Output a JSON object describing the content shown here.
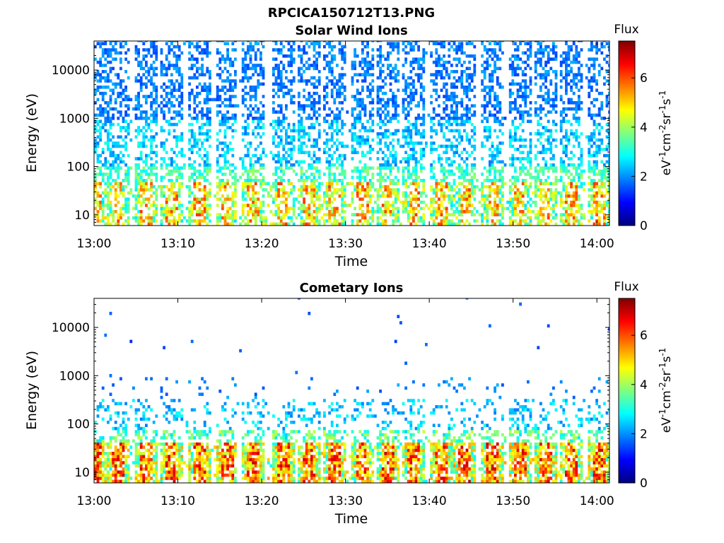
{
  "figure_title": "RPCICA150712T13.PNG",
  "colors": {
    "jet": [
      "#00007f",
      "#0000ff",
      "#007fff",
      "#00ffff",
      "#7fff7f",
      "#ffff00",
      "#ff7f00",
      "#ff0000",
      "#7f0000"
    ]
  },
  "chart_data": [
    {
      "type": "heatmap",
      "title": "Solar Wind Ions",
      "xlabel": "Time",
      "ylabel": "Energy (eV)",
      "x_ticks": [
        "13:00",
        "13:10",
        "13:20",
        "13:30",
        "13:40",
        "13:50",
        "14:00"
      ],
      "x_tick_minutes": [
        0,
        10,
        20,
        30,
        40,
        50,
        60
      ],
      "xlim_minutes": [
        0,
        61.5
      ],
      "y_scale": "log",
      "y_ticks": [
        10,
        100,
        1000,
        10000
      ],
      "y_tick_labels": [
        "10",
        "100",
        "1000",
        "10000"
      ],
      "ylim": [
        6,
        40000
      ],
      "colorbar": {
        "title": "Flux",
        "label": "eV-1cm-2sr-1s-1",
        "range": [
          0,
          7.5
        ],
        "ticks": [
          0,
          2,
          4,
          6
        ],
        "tick_labels": [
          "0",
          "2",
          "4",
          "6"
        ]
      },
      "pattern": "periodic bursts every ~3.2 min; sparse blue 1e3-3e4 eV, cyan/green 50-300 eV, yellow-red 10-40 eV",
      "burst_center_minutes": [
        0.3,
        2.8,
        6.2,
        9.2,
        12.6,
        15.8,
        19.0,
        22.5,
        25.6,
        28.7,
        32.0,
        35.0,
        38.2,
        41.5,
        44.3,
        47.6,
        50.8,
        53.8,
        57.0,
        60.3
      ]
    },
    {
      "type": "heatmap",
      "title": "Cometary Ions",
      "xlabel": "Time",
      "ylabel": "Energy (eV)",
      "x_ticks": [
        "13:00",
        "13:10",
        "13:20",
        "13:30",
        "13:40",
        "13:50",
        "14:00"
      ],
      "x_tick_minutes": [
        0,
        10,
        20,
        30,
        40,
        50,
        60
      ],
      "xlim_minutes": [
        0,
        61.5
      ],
      "y_scale": "log",
      "y_ticks": [
        10,
        100,
        1000,
        10000
      ],
      "y_tick_labels": [
        "10",
        "100",
        "1000",
        "10000"
      ],
      "ylim": [
        6,
        40000
      ],
      "colorbar": {
        "title": "Flux",
        "label": "eV-1cm-2sr-1s-1",
        "range": [
          0,
          7.5
        ],
        "ticks": [
          0,
          2,
          4,
          6
        ],
        "tick_labels": [
          "0",
          "2",
          "4",
          "6"
        ]
      },
      "pattern": "periodic yellow-red bursts at 8-40 eV, cyan/blue speckles 40-300 eV, rare blue dots 1e3-1.2e4 eV",
      "burst_center_minutes": [
        0.3,
        2.8,
        6.2,
        9.2,
        12.6,
        15.8,
        19.0,
        22.5,
        25.6,
        28.7,
        32.0,
        35.0,
        38.2,
        41.5,
        44.3,
        47.6,
        50.8,
        53.8,
        57.0,
        60.3
      ]
    }
  ]
}
